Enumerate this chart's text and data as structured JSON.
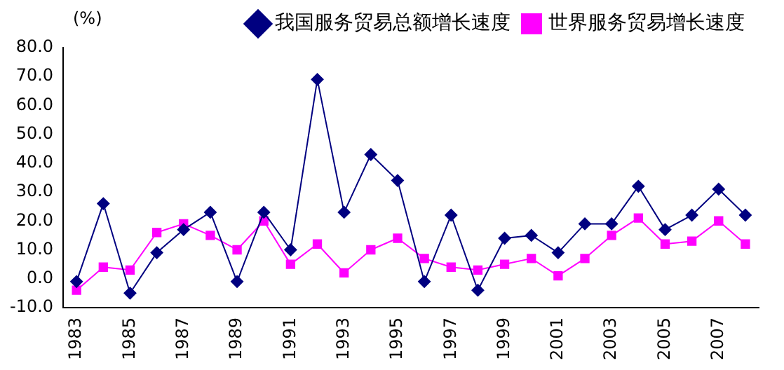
{
  "chart_data": {
    "type": "line",
    "ylabel": "(%)",
    "categories": [
      "1983",
      null,
      "1985",
      null,
      "1987",
      null,
      "1989",
      null,
      "1991",
      null,
      "1993",
      null,
      "1995",
      null,
      "1997",
      null,
      "1999",
      null,
      "2001",
      null,
      "2003",
      null,
      "2005",
      null,
      "2007",
      null
    ],
    "series": [
      {
        "name": "我国服务贸易总额增长速度",
        "color": "#000080",
        "marker": "diamond",
        "values": [
          -1,
          26,
          -5,
          9,
          17,
          23,
          -1,
          23,
          10,
          69,
          23,
          43,
          34,
          -1,
          22,
          -4,
          14,
          15,
          9,
          19,
          19,
          32,
          17,
          22,
          31,
          22
        ]
      },
      {
        "name": "世界服务贸易增长速度",
        "color": "#ff00ff",
        "marker": "square",
        "values": [
          -4,
          4,
          3,
          16,
          19,
          15,
          10,
          20,
          5,
          12,
          2,
          10,
          14,
          7,
          4,
          3,
          5,
          7,
          1,
          7,
          15,
          21,
          12,
          13,
          20,
          12
        ]
      }
    ],
    "ylim": [
      -10,
      80
    ],
    "yticks": [
      {
        "value": -10,
        "label": "-10.0"
      },
      {
        "value": 0,
        "label": "0.0"
      },
      {
        "value": 10,
        "label": "10.0"
      },
      {
        "value": 20,
        "label": "20.0"
      },
      {
        "value": 30,
        "label": "30.0"
      },
      {
        "value": 40,
        "label": "40.0"
      },
      {
        "value": 50,
        "label": "50.0"
      },
      {
        "value": 60,
        "label": "60.0"
      },
      {
        "value": 70,
        "label": "70.0"
      },
      {
        "value": 80,
        "label": "80.0"
      }
    ],
    "grid": false,
    "legend": "top right",
    "line_style": "solid"
  }
}
